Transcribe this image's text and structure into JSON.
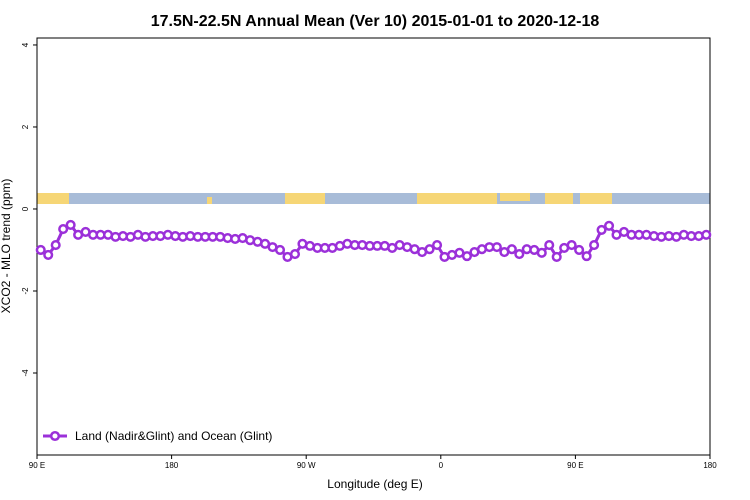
{
  "chart_data": {
    "type": "line",
    "title": "17.5N-22.5N Annual Mean (Ver 10)   2015-01-01 to 2020-12-18",
    "x_label": "Longitude (deg E)",
    "y_label": "XCO2 - MLO trend (ppm)",
    "xlim": [
      90,
      540
    ],
    "ylim": [
      -6,
      4.17
    ],
    "xticks": [
      {
        "value": 90,
        "label": "90 E"
      },
      180,
      {
        "value": 270,
        "label": "90 W"
      },
      {
        "value": 360,
        "label": "0"
      },
      {
        "value": 450,
        "label": "90 E"
      },
      {
        "value": 540,
        "label": "180"
      }
    ],
    "yticks": [
      -4,
      -2,
      0,
      2,
      4
    ],
    "legend": "bottom-left",
    "x": [
      92.5,
      97.5,
      102.5,
      107.5,
      112.5,
      117.5,
      122.5,
      127.5,
      132.5,
      137.5,
      142.5,
      147.5,
      152.5,
      157.5,
      162.5,
      167.5,
      172.5,
      177.5,
      182.5,
      187.5,
      192.5,
      197.5,
      202.5,
      207.5,
      212.5,
      217.5,
      222.5,
      227.5,
      232.5,
      237.5,
      242.5,
      247.5,
      252.5,
      257.5,
      262.5,
      267.5,
      272.5,
      277.5,
      282.5,
      287.5,
      292.5,
      297.5,
      302.5,
      307.5,
      312.5,
      317.5,
      322.5,
      327.5,
      332.5,
      337.5,
      342.5,
      347.5,
      352.5,
      357.5,
      362.5,
      367.5,
      372.5,
      377.5,
      382.5,
      387.5,
      392.5,
      397.5,
      402.5,
      407.5,
      412.5,
      417.5,
      422.5,
      427.5,
      432.5,
      437.5,
      442.5,
      447.5,
      452.5,
      457.5,
      462.5,
      467.5,
      472.5,
      477.5,
      482.5,
      487.5,
      492.5,
      497.5,
      502.5,
      507.5,
      512.5,
      517.5,
      522.5,
      527.5,
      532.5,
      537.5
    ],
    "series": [
      {
        "name": "Land (Nadir&Glint) and Ocean (Glint)",
        "color": "#9b30d9",
        "values": [
          -1.0,
          -1.12,
          -0.88,
          -0.49,
          -0.39,
          -0.63,
          -0.56,
          -0.63,
          -0.63,
          -0.63,
          -0.68,
          -0.66,
          -0.68,
          -0.63,
          -0.68,
          -0.66,
          -0.66,
          -0.63,
          -0.66,
          -0.68,
          -0.66,
          -0.68,
          -0.68,
          -0.68,
          -0.68,
          -0.71,
          -0.73,
          -0.71,
          -0.76,
          -0.8,
          -0.85,
          -0.93,
          -1.0,
          -1.17,
          -1.1,
          -0.85,
          -0.9,
          -0.95,
          -0.95,
          -0.95,
          -0.9,
          -0.85,
          -0.88,
          -0.88,
          -0.9,
          -0.9,
          -0.9,
          -0.95,
          -0.88,
          -0.93,
          -0.98,
          -1.05,
          -0.98,
          -0.88,
          -1.17,
          -1.12,
          -1.07,
          -1.15,
          -1.05,
          -0.98,
          -0.93,
          -0.93,
          -1.05,
          -0.98,
          -1.1,
          -0.98,
          -1.0,
          -1.07,
          -0.88,
          -1.17,
          -0.95,
          -0.88,
          -1.0,
          -1.15,
          -0.88,
          -0.51,
          -0.41,
          -0.63,
          -0.56,
          -0.63,
          -0.63,
          -0.63,
          -0.66,
          -0.68,
          -0.66,
          -0.68,
          -0.63,
          -0.66,
          -0.66,
          -0.63
        ]
      }
    ]
  }
}
